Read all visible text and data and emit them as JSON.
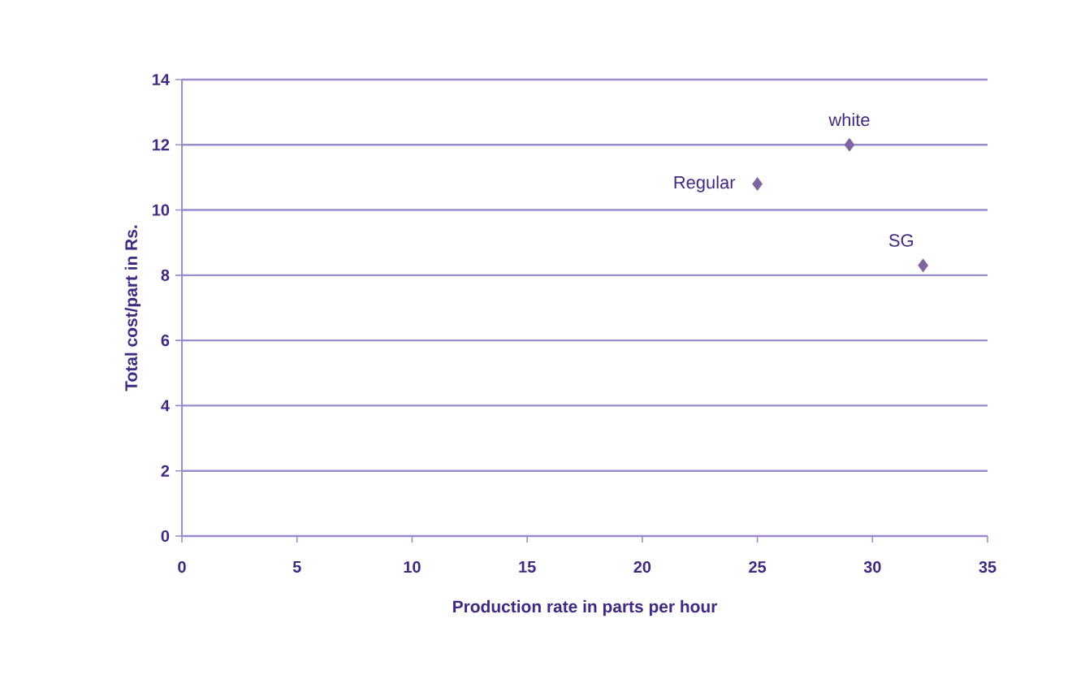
{
  "chart_data": {
    "type": "scatter",
    "xlabel": "Production rate in parts per hour",
    "ylabel": "Total cost/part in Rs.",
    "series": [
      {
        "color": "#8064a2",
        "x": [
          25,
          29,
          32.2
        ],
        "values": [
          10.8,
          12.0,
          8.3
        ]
      }
    ],
    "marker": "diamond",
    "grid": "y",
    "xlim": [
      0,
      35
    ],
    "ylim": [
      0,
      14
    ],
    "xticks": [
      0,
      5,
      10,
      15,
      20,
      25,
      30,
      35
    ],
    "yticks": [
      0,
      2,
      4,
      6,
      8,
      10,
      12,
      14
    ],
    "annotations": [
      {
        "text": "Regular",
        "x": 25,
        "y": 10.8
      },
      {
        "text": "white",
        "x": 29,
        "y": 12.0
      },
      {
        "text": "SG",
        "x": 32.2,
        "y": 8.3
      }
    ]
  }
}
